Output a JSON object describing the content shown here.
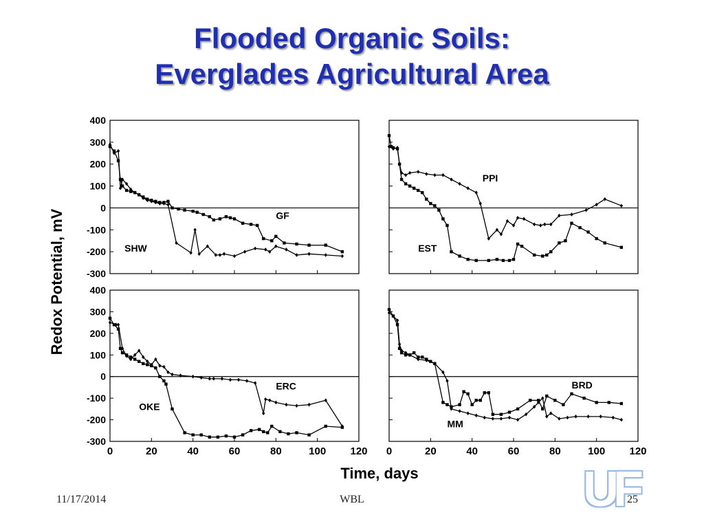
{
  "slide": {
    "title_line1": "Flooded Organic Soils:",
    "title_line2": "Everglades Agricultural Area",
    "footer_date": "11/17/2014",
    "footer_center": "WBL",
    "page_number": "25",
    "logo_text": "UF"
  },
  "chart_data": [
    {
      "type": "line",
      "panel": "top-left",
      "xlabel": "Time, days",
      "ylabel": "Redox Potential, mV",
      "xlim": [
        0,
        120
      ],
      "ylim": [
        -300,
        400
      ],
      "yticks": [
        400,
        300,
        200,
        100,
        0,
        -100,
        -200,
        -300
      ],
      "xticks": [
        0,
        20,
        40,
        60,
        80,
        100,
        120
      ],
      "zero_line": true,
      "series": [
        {
          "name": "GF",
          "marker": "square",
          "label_at": [
            80,
            -50
          ],
          "x": [
            0,
            2,
            4,
            5,
            6,
            8,
            10,
            12,
            14,
            16,
            18,
            20,
            22,
            24,
            26,
            28,
            30,
            33,
            36,
            40,
            42,
            45,
            48,
            50,
            53,
            56,
            58,
            60,
            64,
            68,
            71,
            74,
            78,
            80,
            84,
            90,
            96,
            104,
            112
          ],
          "y": [
            280,
            260,
            215,
            130,
            100,
            80,
            75,
            70,
            60,
            50,
            40,
            35,
            30,
            25,
            25,
            30,
            0,
            -5,
            -10,
            -15,
            -20,
            -30,
            -40,
            -55,
            -50,
            -40,
            -45,
            -50,
            -70,
            -75,
            -80,
            -140,
            -150,
            -130,
            -160,
            -165,
            -170,
            -170,
            -200
          ]
        },
        {
          "name": "SHW",
          "marker": "diamond",
          "label_at": [
            7,
            -200
          ],
          "x": [
            0,
            2,
            4,
            5,
            6,
            8,
            10,
            12,
            14,
            16,
            18,
            20,
            22,
            24,
            26,
            28,
            32,
            39,
            41,
            43,
            47,
            51,
            53,
            55,
            60,
            65,
            70,
            75,
            77,
            80,
            85,
            90,
            96,
            104,
            112
          ],
          "y": [
            290,
            250,
            260,
            90,
            130,
            110,
            85,
            70,
            60,
            45,
            35,
            30,
            25,
            20,
            20,
            15,
            -160,
            -205,
            -100,
            -210,
            -175,
            -215,
            -215,
            -210,
            -220,
            -200,
            -185,
            -190,
            -200,
            -175,
            -190,
            -215,
            -210,
            -215,
            -220
          ]
        }
      ]
    },
    {
      "type": "line",
      "panel": "top-right",
      "xlabel": "Time, days",
      "ylabel": "Redox Potential, mV",
      "xlim": [
        0,
        120
      ],
      "ylim": [
        -300,
        400
      ],
      "zero_line": true,
      "series": [
        {
          "name": "PPI",
          "marker": "diamond",
          "label_at": [
            45,
            120
          ],
          "x": [
            0,
            2,
            4,
            5,
            6,
            8,
            10,
            14,
            18,
            22,
            26,
            30,
            34,
            38,
            42,
            44,
            48,
            52,
            54,
            57,
            60,
            62,
            65,
            70,
            73,
            75,
            78,
            82,
            88,
            95,
            100,
            104,
            112
          ],
          "y": [
            280,
            270,
            275,
            200,
            160,
            150,
            160,
            165,
            155,
            150,
            150,
            130,
            110,
            90,
            70,
            20,
            -140,
            -100,
            -120,
            -60,
            -80,
            -45,
            -50,
            -75,
            -80,
            -75,
            -75,
            -35,
            -30,
            -10,
            15,
            40,
            10
          ]
        },
        {
          "name": "EST",
          "marker": "square",
          "label_at": [
            14,
            -200
          ],
          "x": [
            0,
            1,
            2,
            4,
            5,
            6,
            8,
            10,
            12,
            14,
            16,
            18,
            20,
            22,
            24,
            26,
            28,
            30,
            34,
            38,
            42,
            48,
            52,
            55,
            58,
            60,
            62,
            64,
            70,
            74,
            76,
            78,
            82,
            85,
            88,
            92,
            96,
            100,
            104,
            112
          ],
          "y": [
            330,
            280,
            275,
            270,
            200,
            130,
            110,
            100,
            90,
            80,
            70,
            40,
            20,
            10,
            -10,
            -50,
            -80,
            -200,
            -220,
            -235,
            -240,
            -240,
            -235,
            -240,
            -240,
            -235,
            -165,
            -175,
            -215,
            -220,
            -215,
            -200,
            -160,
            -150,
            -70,
            -90,
            -110,
            -140,
            -160,
            -180
          ]
        }
      ]
    },
    {
      "type": "line",
      "panel": "bottom-left",
      "xlabel": "Time, days",
      "ylabel": "Redox Potential, mV",
      "xlim": [
        0,
        120
      ],
      "ylim": [
        -300,
        400
      ],
      "zero_line": true,
      "series": [
        {
          "name": "ERC",
          "marker": "diamond",
          "label_at": [
            80,
            -60
          ],
          "x": [
            0,
            3,
            4,
            6,
            8,
            10,
            12,
            14,
            16,
            18,
            20,
            22,
            24,
            26,
            28,
            30,
            34,
            40,
            44,
            48,
            50,
            54,
            58,
            62,
            66,
            70,
            74,
            75,
            77,
            80,
            85,
            90,
            96,
            104,
            112
          ],
          "y": [
            250,
            240,
            240,
            130,
            95,
            80,
            100,
            120,
            90,
            70,
            55,
            80,
            50,
            45,
            20,
            10,
            5,
            0,
            -5,
            -10,
            -10,
            -10,
            -15,
            -15,
            -20,
            -30,
            -170,
            -105,
            -110,
            -120,
            -130,
            -135,
            -130,
            -110,
            -230
          ]
        },
        {
          "name": "OKE",
          "marker": "square",
          "label_at": [
            14,
            -155
          ],
          "x": [
            0,
            2,
            4,
            5,
            6,
            8,
            10,
            12,
            14,
            16,
            18,
            20,
            22,
            24,
            26,
            27,
            30,
            36,
            40,
            44,
            48,
            52,
            56,
            60,
            64,
            68,
            72,
            74,
            76,
            78,
            82,
            86,
            90,
            96,
            104,
            112
          ],
          "y": [
            270,
            240,
            220,
            130,
            110,
            100,
            90,
            80,
            70,
            60,
            55,
            50,
            40,
            0,
            -20,
            -35,
            -150,
            -260,
            -270,
            -270,
            -280,
            -280,
            -275,
            -280,
            -270,
            -250,
            -245,
            -255,
            -260,
            -230,
            -255,
            -265,
            -260,
            -270,
            -230,
            -235
          ]
        }
      ]
    },
    {
      "type": "line",
      "panel": "bottom-right",
      "xlabel": "Time, days",
      "ylabel": "Redox Potential, mV",
      "xlim": [
        0,
        120
      ],
      "ylim": [
        -300,
        400
      ],
      "zero_line": true,
      "series": [
        {
          "name": "BRD",
          "marker": "square",
          "label_at": [
            88,
            -55
          ],
          "x": [
            0,
            2,
            4,
            5,
            6,
            8,
            10,
            12,
            14,
            16,
            18,
            20,
            22,
            26,
            28,
            30,
            34,
            36,
            38,
            40,
            42,
            44,
            46,
            48,
            50,
            54,
            58,
            62,
            68,
            72,
            74,
            76,
            80,
            84,
            88,
            94,
            100,
            106,
            112
          ],
          "y": [
            310,
            280,
            240,
            130,
            110,
            100,
            100,
            110,
            90,
            90,
            80,
            70,
            60,
            -120,
            -130,
            -140,
            -130,
            -70,
            -80,
            -130,
            -110,
            -110,
            -75,
            -75,
            -175,
            -175,
            -165,
            -150,
            -110,
            -110,
            -150,
            -90,
            -110,
            -130,
            -80,
            -100,
            -120,
            -120,
            -125
          ]
        },
        {
          "name": "MM",
          "marker": "diamond",
          "label_at": [
            28,
            -235
          ],
          "x": [
            0,
            2,
            4,
            5,
            6,
            8,
            10,
            14,
            18,
            22,
            26,
            28,
            30,
            34,
            38,
            42,
            46,
            50,
            54,
            58,
            62,
            66,
            70,
            72,
            74,
            76,
            78,
            82,
            86,
            90,
            96,
            102,
            108,
            112
          ],
          "y": [
            295,
            280,
            260,
            150,
            120,
            110,
            100,
            80,
            75,
            60,
            20,
            -20,
            -150,
            -160,
            -170,
            -180,
            -190,
            -195,
            -195,
            -190,
            -200,
            -175,
            -140,
            -120,
            -100,
            -185,
            -170,
            -195,
            -190,
            -185,
            -185,
            -185,
            -190,
            -200
          ]
        }
      ]
    }
  ]
}
